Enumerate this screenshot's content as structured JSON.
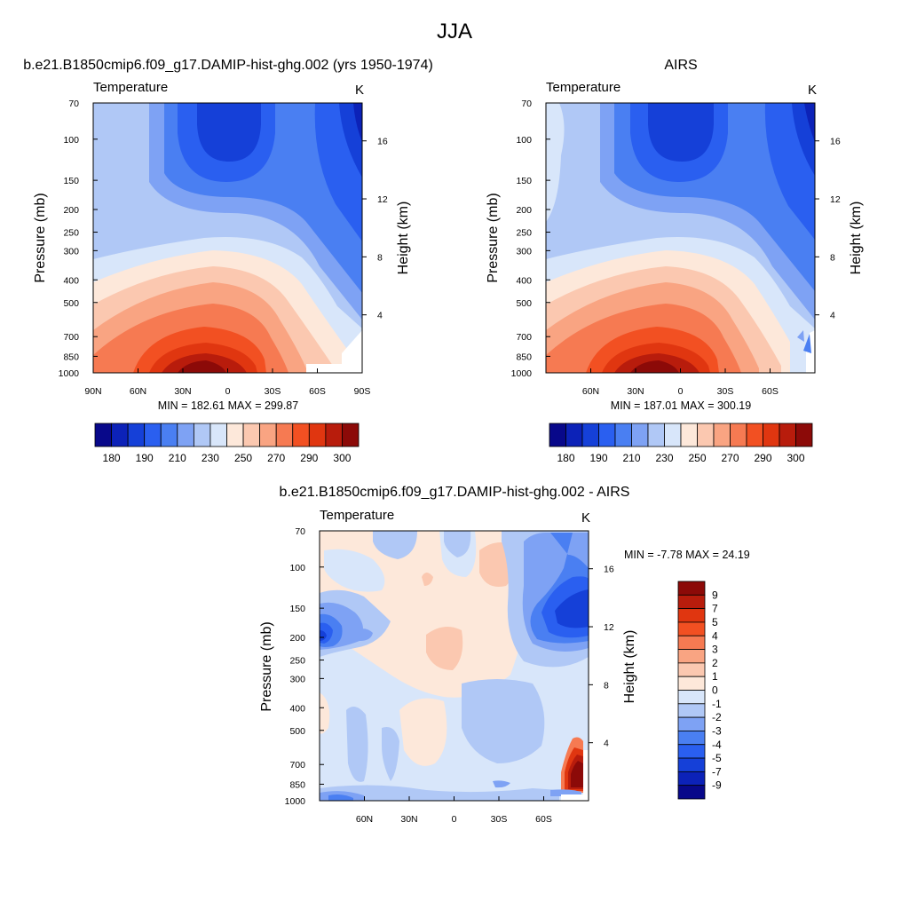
{
  "chart_data": {
    "type": "heatmap",
    "title": "JJA",
    "panels": [
      {
        "id": "model",
        "title": "b.e21.B1850cmip6.f09_g17.DAMIP-hist-ghg.002 (yrs 1950-1974)",
        "left_label": "Temperature",
        "right_label": "K",
        "ylabel": "Pressure (mb)",
        "y2label": "Height (km)",
        "xticks": [
          "90N",
          "60N",
          "30N",
          "0",
          "30S",
          "60S",
          "90S"
        ],
        "xtick_values": [
          90,
          60,
          30,
          0,
          -30,
          -60,
          -90
        ],
        "xlim": [
          90,
          -90
        ],
        "yticks": [
          "70",
          "100",
          "150",
          "200",
          "250",
          "300",
          "400",
          "500",
          "700",
          "850",
          "1000"
        ],
        "ytick_values": [
          70,
          100,
          150,
          200,
          250,
          300,
          400,
          500,
          700,
          850,
          1000
        ],
        "ylim": [
          1000,
          70
        ],
        "y_scale": "log",
        "y2ticks": [
          "4",
          "8",
          "12",
          "16"
        ],
        "y2tick_values": [
          4,
          8,
          12,
          16
        ],
        "minmax_text": "MIN = 182.61  MAX = 299.87",
        "min": 182.61,
        "max": 299.87,
        "colorbar": {
          "orientation": "horizontal",
          "labels": [
            "180",
            "190",
            "210",
            "230",
            "250",
            "270",
            "290",
            "300"
          ],
          "levels": [
            180,
            185,
            190,
            200,
            210,
            220,
            230,
            240,
            250,
            260,
            270,
            280,
            285,
            290,
            295,
            300
          ],
          "colors": [
            "#08088a",
            "#0c22b8",
            "#1540d8",
            "#2a5ff0",
            "#4a7ff2",
            "#7ea2f4",
            "#b0c8f6",
            "#d8e6fa",
            "#fde8da",
            "#fbc8b0",
            "#f9a482",
            "#f67a52",
            "#f25022",
            "#e03610",
            "#b81c0c",
            "#8c0a08"
          ]
        }
      },
      {
        "id": "obs",
        "title": "AIRS",
        "left_label": "Temperature",
        "right_label": "K",
        "ylabel": "Pressure (mb)",
        "y2label": "Height (km)",
        "xticks": [
          "60N",
          "30N",
          "0",
          "30S",
          "60S"
        ],
        "xtick_values": [
          60,
          30,
          0,
          -30,
          -60
        ],
        "xlim": [
          90,
          -90
        ],
        "yticks": [
          "70",
          "100",
          "150",
          "200",
          "250",
          "300",
          "400",
          "500",
          "700",
          "850",
          "1000"
        ],
        "ytick_values": [
          70,
          100,
          150,
          200,
          250,
          300,
          400,
          500,
          700,
          850,
          1000
        ],
        "ylim": [
          1000,
          70
        ],
        "y_scale": "log",
        "y2ticks": [
          "4",
          "8",
          "12",
          "16"
        ],
        "y2tick_values": [
          4,
          8,
          12,
          16
        ],
        "minmax_text": "MIN = 187.01  MAX = 300.19",
        "min": 187.01,
        "max": 300.19,
        "colorbar": {
          "orientation": "horizontal",
          "labels": [
            "180",
            "190",
            "210",
            "230",
            "250",
            "270",
            "290",
            "300"
          ],
          "levels": [
            180,
            185,
            190,
            200,
            210,
            220,
            230,
            240,
            250,
            260,
            270,
            280,
            285,
            290,
            295,
            300
          ],
          "colors": [
            "#08088a",
            "#0c22b8",
            "#1540d8",
            "#2a5ff0",
            "#4a7ff2",
            "#7ea2f4",
            "#b0c8f6",
            "#d8e6fa",
            "#fde8da",
            "#fbc8b0",
            "#f9a482",
            "#f67a52",
            "#f25022",
            "#e03610",
            "#b81c0c",
            "#8c0a08"
          ]
        }
      },
      {
        "id": "diff",
        "title": "b.e21.B1850cmip6.f09_g17.DAMIP-hist-ghg.002 - AIRS",
        "left_label": "Temperature",
        "right_label": "K",
        "ylabel": "Pressure (mb)",
        "y2label": "Height (km)",
        "xticks": [
          "60N",
          "30N",
          "0",
          "30S",
          "60S"
        ],
        "xtick_values": [
          60,
          30,
          0,
          -30,
          -60
        ],
        "xlim": [
          90,
          -90
        ],
        "yticks": [
          "70",
          "100",
          "150",
          "200",
          "250",
          "300",
          "400",
          "500",
          "700",
          "850",
          "1000"
        ],
        "ytick_values": [
          70,
          100,
          150,
          200,
          250,
          300,
          400,
          500,
          700,
          850,
          1000
        ],
        "ylim": [
          1000,
          70
        ],
        "y_scale": "log",
        "y2ticks": [
          "4",
          "8",
          "12",
          "16"
        ],
        "y2tick_values": [
          4,
          8,
          12,
          16
        ],
        "minmax_text": "MIN =  -7.78  MAX =  24.19",
        "min": -7.78,
        "max": 24.19,
        "colorbar": {
          "orientation": "vertical",
          "labels": [
            "9",
            "7",
            "5",
            "4",
            "3",
            "2",
            "1",
            "0",
            "-1",
            "-2",
            "-3",
            "-4",
            "-5",
            "-7",
            "-9"
          ],
          "levels": [
            9,
            7,
            5,
            4,
            3,
            2,
            1,
            0,
            -1,
            -2,
            -3,
            -4,
            -5,
            -7,
            -9
          ],
          "colors": [
            "#8c0a08",
            "#b81c0c",
            "#e03610",
            "#f25022",
            "#f67a52",
            "#f9a482",
            "#fbc8b0",
            "#fde8da",
            "#d8e6fa",
            "#b0c8f6",
            "#7ea2f4",
            "#4a7ff2",
            "#2a5ff0",
            "#1540d8",
            "#0c22b8",
            "#08088a"
          ]
        }
      }
    ]
  }
}
